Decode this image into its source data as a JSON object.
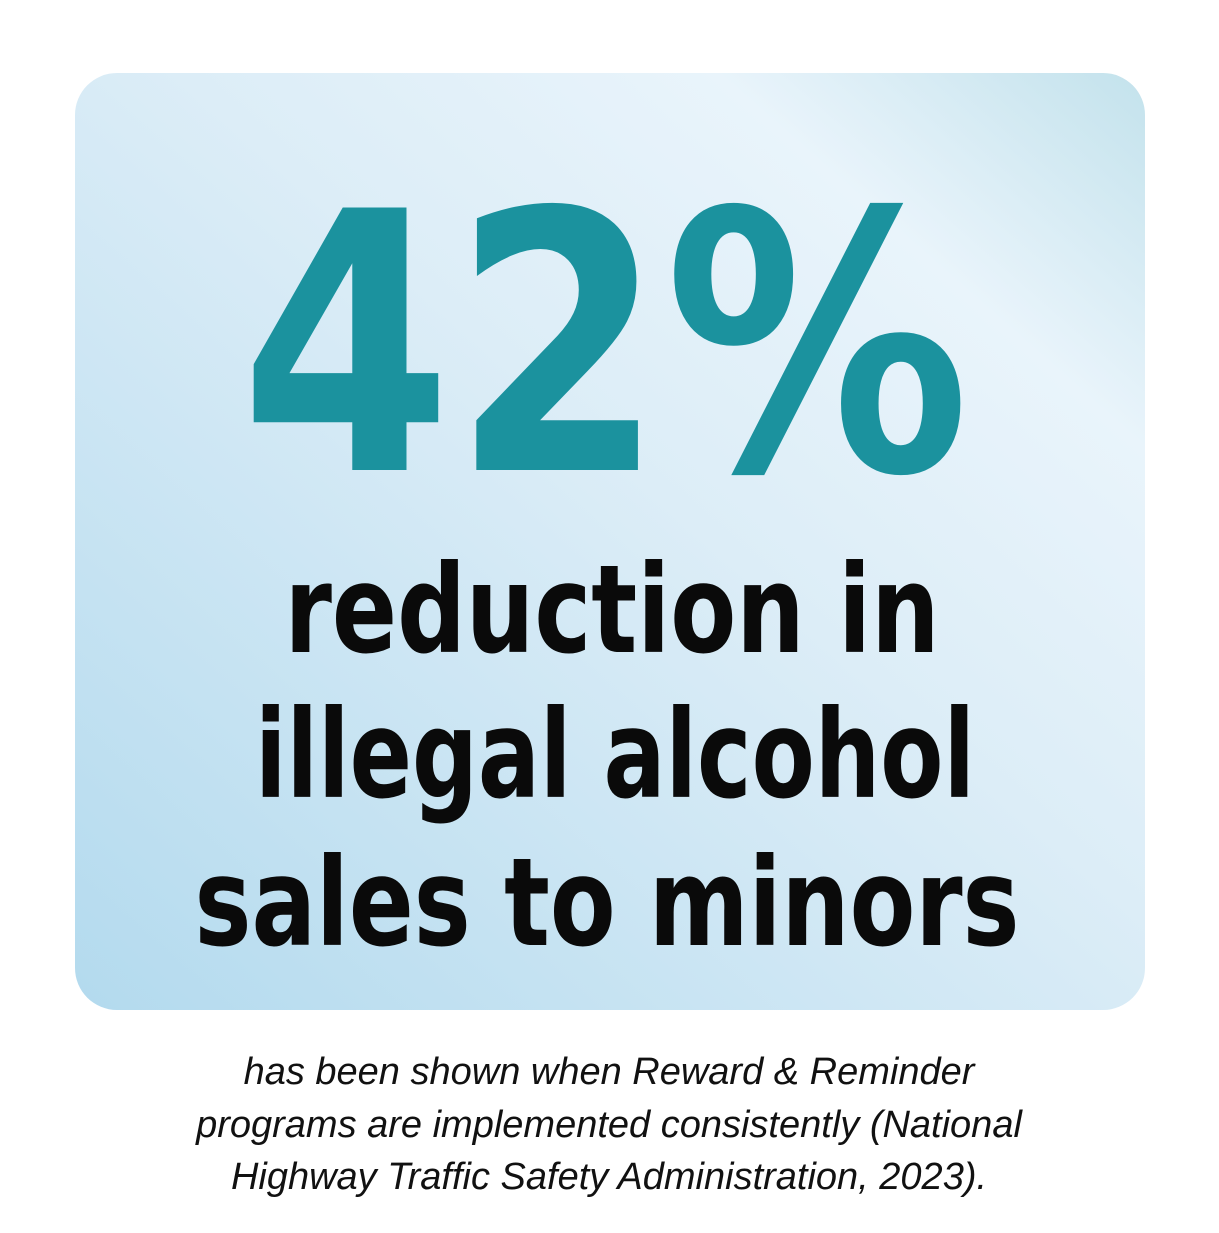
{
  "statistic": "42%",
  "description": [
    "reduction in",
    "illegal alcohol",
    "sales to minors"
  ],
  "caption": [
    "has been shown when Reward & Reminder",
    "programs are implemented consistently (National",
    "Highway Traffic Safety Administration, 2023)."
  ]
}
